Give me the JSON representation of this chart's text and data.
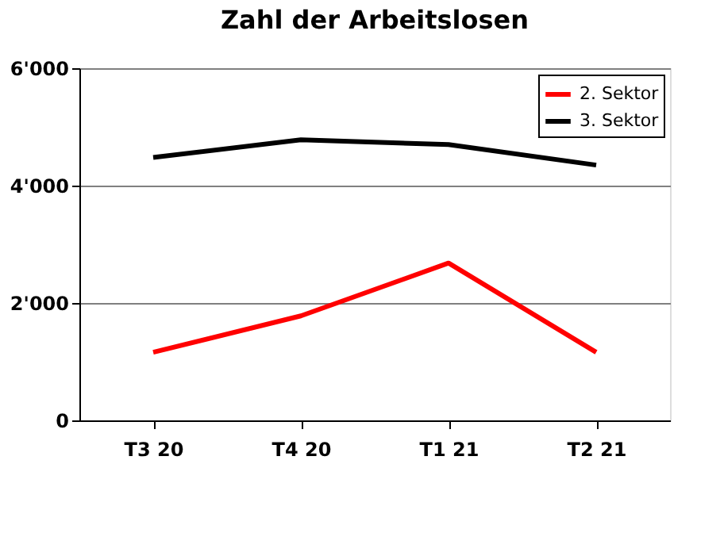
{
  "chart_data": {
    "type": "line",
    "title": "Zahl der Arbeitslosen",
    "categories": [
      "T3 20",
      "T4 20",
      "T1 21",
      "T2 21"
    ],
    "series": [
      {
        "name": "2. Sektor",
        "color": "#ff0000",
        "values": [
          1160,
          1780,
          2680,
          1160
        ]
      },
      {
        "name": "3. Sektor",
        "color": "#000000",
        "values": [
          4480,
          4780,
          4700,
          4350
        ]
      }
    ],
    "ylim": [
      0,
      6000
    ],
    "yticks": [
      {
        "value": 0,
        "label": "0"
      },
      {
        "value": 2000,
        "label": "2'000"
      },
      {
        "value": 4000,
        "label": "4'000"
      },
      {
        "value": 6000,
        "label": "6'000"
      }
    ],
    "grid": "y",
    "legend": "top right",
    "marker": "none",
    "line_style": "solid"
  }
}
